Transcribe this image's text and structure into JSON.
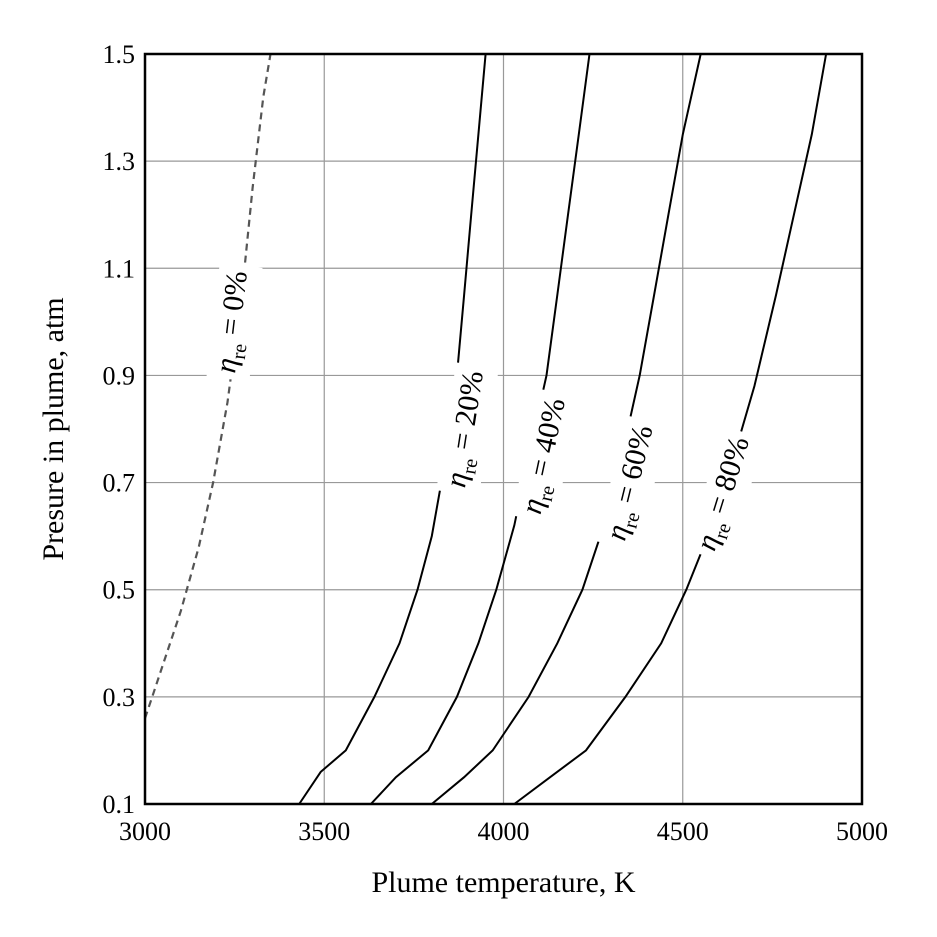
{
  "chart_data": {
    "type": "line",
    "xlabel": "Plume temperature, K",
    "ylabel": "Presure in plume, atm",
    "xlim": [
      3000,
      5000
    ],
    "ylim": [
      0.1,
      1.5
    ],
    "xticks": [
      "3000",
      "3500",
      "4000",
      "4500",
      "5000"
    ],
    "yticks": [
      "0.1",
      "0.3",
      "0.5",
      "0.7",
      "0.9",
      "1.1",
      "1.3",
      "1.5"
    ],
    "grid": true,
    "series": [
      {
        "name": "η_re = 0%",
        "label_symbol": "η",
        "label_sub": "re",
        "label_rest": " = 0%",
        "dashed": true,
        "color": "#555555",
        "label_at": {
          "x": 3240,
          "y": 1.0
        },
        "points": [
          [
            3000,
            0.26
          ],
          [
            3020,
            0.3
          ],
          [
            3060,
            0.38
          ],
          [
            3100,
            0.46
          ],
          [
            3150,
            0.58
          ],
          [
            3190,
            0.7
          ],
          [
            3230,
            0.85
          ],
          [
            3270,
            1.05
          ],
          [
            3300,
            1.25
          ],
          [
            3330,
            1.42
          ],
          [
            3350,
            1.5
          ]
        ]
      },
      {
        "name": "η_re = 20%",
        "label_symbol": "η",
        "label_sub": "re",
        "label_rest": " = 20%",
        "dashed": false,
        "color": "#000000",
        "label_at": {
          "x": 3890,
          "y": 0.8
        },
        "points": [
          [
            3430,
            0.1
          ],
          [
            3490,
            0.16
          ],
          [
            3560,
            0.2
          ],
          [
            3640,
            0.3
          ],
          [
            3710,
            0.4
          ],
          [
            3760,
            0.5
          ],
          [
            3800,
            0.6
          ],
          [
            3840,
            0.75
          ],
          [
            3870,
            0.9
          ],
          [
            3890,
            1.05
          ],
          [
            3910,
            1.2
          ],
          [
            3930,
            1.35
          ],
          [
            3950,
            1.5
          ]
        ]
      },
      {
        "name": "η_re = 40%",
        "label_symbol": "η",
        "label_sub": "re",
        "label_rest": " = 40%",
        "dashed": false,
        "color": "#000000",
        "label_at": {
          "x": 4110,
          "y": 0.75
        },
        "points": [
          [
            3630,
            0.1
          ],
          [
            3700,
            0.15
          ],
          [
            3790,
            0.2
          ],
          [
            3870,
            0.3
          ],
          [
            3930,
            0.4
          ],
          [
            3980,
            0.5
          ],
          [
            4030,
            0.62
          ],
          [
            4080,
            0.78
          ],
          [
            4120,
            0.9
          ],
          [
            4150,
            1.05
          ],
          [
            4180,
            1.2
          ],
          [
            4210,
            1.35
          ],
          [
            4240,
            1.5
          ]
        ]
      },
      {
        "name": "η_re = 60%",
        "label_symbol": "η",
        "label_sub": "re",
        "label_rest": " = 60%",
        "dashed": false,
        "color": "#000000",
        "label_at": {
          "x": 4350,
          "y": 0.7
        },
        "points": [
          [
            3800,
            0.1
          ],
          [
            3890,
            0.15
          ],
          [
            3970,
            0.2
          ],
          [
            4070,
            0.3
          ],
          [
            4150,
            0.4
          ],
          [
            4220,
            0.5
          ],
          [
            4270,
            0.6
          ],
          [
            4330,
            0.75
          ],
          [
            4380,
            0.9
          ],
          [
            4420,
            1.05
          ],
          [
            4460,
            1.2
          ],
          [
            4500,
            1.35
          ],
          [
            4550,
            1.5
          ]
        ]
      },
      {
        "name": "η_re = 80%",
        "label_symbol": "η",
        "label_sub": "re",
        "label_rest": " = 80%",
        "dashed": false,
        "color": "#000000",
        "label_at": {
          "x": 4610,
          "y": 0.68
        },
        "points": [
          [
            4030,
            0.1
          ],
          [
            4130,
            0.15
          ],
          [
            4230,
            0.2
          ],
          [
            4340,
            0.3
          ],
          [
            4440,
            0.4
          ],
          [
            4510,
            0.5
          ],
          [
            4570,
            0.6
          ],
          [
            4630,
            0.72
          ],
          [
            4700,
            0.88
          ],
          [
            4760,
            1.05
          ],
          [
            4810,
            1.2
          ],
          [
            4860,
            1.35
          ],
          [
            4900,
            1.5
          ]
        ]
      }
    ]
  }
}
